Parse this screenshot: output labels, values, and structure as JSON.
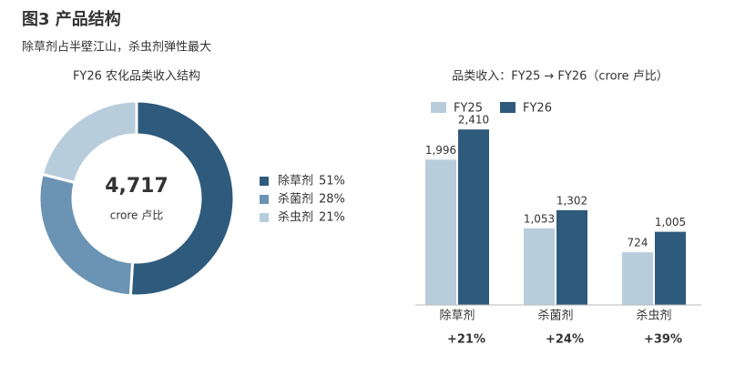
{
  "header": {
    "title": "图3  产品结构",
    "subtitle": "除草剂占半壁江山，杀虫剂弹性最大"
  },
  "chart_data": [
    {
      "type": "pie",
      "title": "FY26 农化品类收入结构",
      "center_label": "4,717",
      "center_sublabel": "crore 卢比",
      "categories": [
        "除草剂",
        "杀菌剂",
        "杀虫剂"
      ],
      "values": [
        51,
        28,
        21
      ],
      "value_labels": [
        "51%",
        "28%",
        "21%"
      ],
      "colors": [
        "#2e5a7c",
        "#6b93b3",
        "#b8cddc"
      ]
    },
    {
      "type": "bar",
      "title": "品类收入：FY25 → FY26（crore 卢比）",
      "categories": [
        "除草剂",
        "杀菌剂",
        "杀虫剂"
      ],
      "series": [
        {
          "name": "FY25",
          "color": "#b8cddc",
          "values": [
            1996,
            1053,
            724
          ],
          "value_labels": [
            "1,996",
            "1,053",
            "724"
          ]
        },
        {
          "name": "FY26",
          "color": "#2e5a7c",
          "values": [
            2410,
            1302,
            1005
          ],
          "value_labels": [
            "2,410",
            "1,302",
            "1,005"
          ]
        }
      ],
      "growth_labels": [
        "+21%",
        "+24%",
        "+39%"
      ],
      "ylim": [
        0,
        2600
      ]
    }
  ]
}
